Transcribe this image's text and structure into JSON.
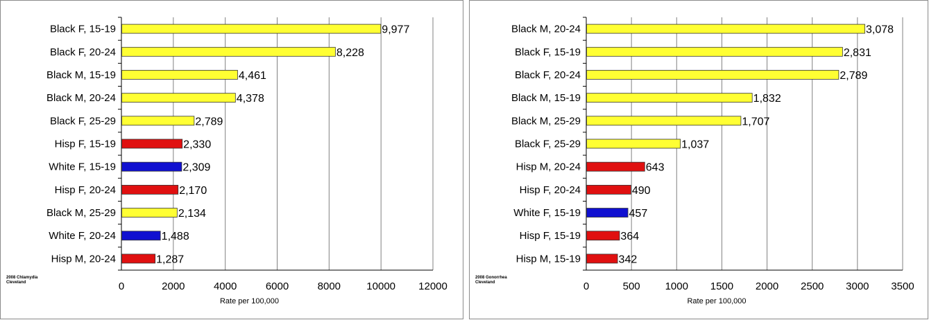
{
  "colors": {
    "black": "#ffff33",
    "hispanic": "#e01010",
    "white": "#1010d0",
    "grid": "#808080"
  },
  "chart_data": [
    {
      "type": "bar",
      "orientation": "horizontal",
      "note_line1": "2008 Chlamydia",
      "note_line2": "Cleveland",
      "xlabel": "Rate per 100,000",
      "xlim": [
        0,
        12000
      ],
      "ticks": [
        0,
        2000,
        4000,
        6000,
        8000,
        10000,
        12000
      ],
      "categories": [
        "Black F, 15-19",
        "Black F, 20-24",
        "Black M, 15-19",
        "Black M, 20-24",
        "Black F, 25-29",
        "Hisp F, 15-19",
        "White F, 15-19",
        "Hisp F, 20-24",
        "Black M, 25-29",
        "White F, 20-24",
        "Hisp M, 20-24"
      ],
      "values": [
        9977,
        8228,
        4461,
        4378,
        2789,
        2330,
        2309,
        2170,
        2134,
        1488,
        1287
      ],
      "labels": [
        "9,977",
        "8,228",
        "4,461",
        "4,378",
        "2,789",
        "2,330",
        "2,309",
        "2,170",
        "2,134",
        "1,488",
        "1,287"
      ],
      "colors": [
        "black",
        "black",
        "black",
        "black",
        "black",
        "hispanic",
        "white",
        "hispanic",
        "black",
        "white",
        "hispanic"
      ]
    },
    {
      "type": "bar",
      "orientation": "horizontal",
      "note_line1": "2008 Gonorrhea",
      "note_line2": "Cleveland",
      "xlabel": "Rate per 100,000",
      "xlim": [
        0,
        3500
      ],
      "ticks": [
        0,
        500,
        1000,
        1500,
        2000,
        2500,
        3000,
        3500
      ],
      "categories": [
        "Black M, 20-24",
        "Black F, 15-19",
        "Black F, 20-24",
        "Black M, 15-19",
        "Black M, 25-29",
        "Black F, 25-29",
        "Hisp M, 20-24",
        "Hisp F, 20-24",
        "White F, 15-19",
        "Hisp F, 15-19",
        "Hisp M, 15-19"
      ],
      "values": [
        3078,
        2831,
        2789,
        1832,
        1707,
        1037,
        643,
        490,
        457,
        364,
        342
      ],
      "labels": [
        "3,078",
        "2,831",
        "2,789",
        "1,832",
        "1,707",
        "1,037",
        "643",
        "490",
        "457",
        "364",
        "342"
      ],
      "colors": [
        "black",
        "black",
        "black",
        "black",
        "black",
        "black",
        "hispanic",
        "hispanic",
        "white",
        "hispanic",
        "hispanic"
      ]
    }
  ]
}
